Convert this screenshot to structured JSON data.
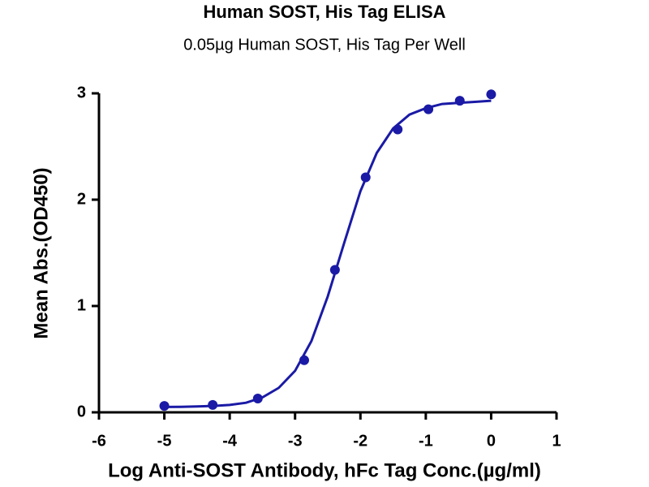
{
  "chart_data": {
    "type": "scatter",
    "title": "Human SOST, His Tag ELISA",
    "subtitle": "0.05µg Human SOST, His Tag Per Well",
    "x_label": "Log Anti-SOST Antibody, hFc Tag Conc.(µg/ml)",
    "y_label": "Mean Abs.(OD450)",
    "xlim": [
      -6,
      1
    ],
    "xticks": [
      -6,
      -5,
      -4,
      -3,
      -2,
      -1,
      0,
      1
    ],
    "ylim": [
      0,
      3
    ],
    "yticks": [
      0,
      1,
      2,
      3
    ],
    "grid": false,
    "series": [
      {
        "type": "scatter",
        "color": "#1a1aa6",
        "x": [
          -5,
          -4.26,
          -3.57,
          -2.86,
          -2.39,
          -1.92,
          -1.43,
          -0.96,
          -0.48,
          0
        ],
        "values": [
          0.06,
          0.07,
          0.13,
          0.49,
          1.34,
          2.21,
          2.66,
          2.85,
          2.93,
          2.99
        ]
      },
      {
        "type": "line",
        "color": "#1a1aa6",
        "x": [
          -5,
          -4.75,
          -4.5,
          -4.25,
          -4,
          -3.75,
          -3.5,
          -3.25,
          -3,
          -2.75,
          -2.5,
          -2.25,
          -2,
          -1.75,
          -1.5,
          -1.25,
          -1,
          -0.75,
          -0.5,
          -0.25,
          0
        ],
        "values": [
          0.051,
          0.052,
          0.055,
          0.06,
          0.07,
          0.09,
          0.14,
          0.23,
          0.39,
          0.67,
          1.09,
          1.59,
          2.08,
          2.44,
          2.67,
          2.8,
          2.86,
          2.9,
          2.91,
          2.92,
          2.93
        ]
      }
    ]
  }
}
